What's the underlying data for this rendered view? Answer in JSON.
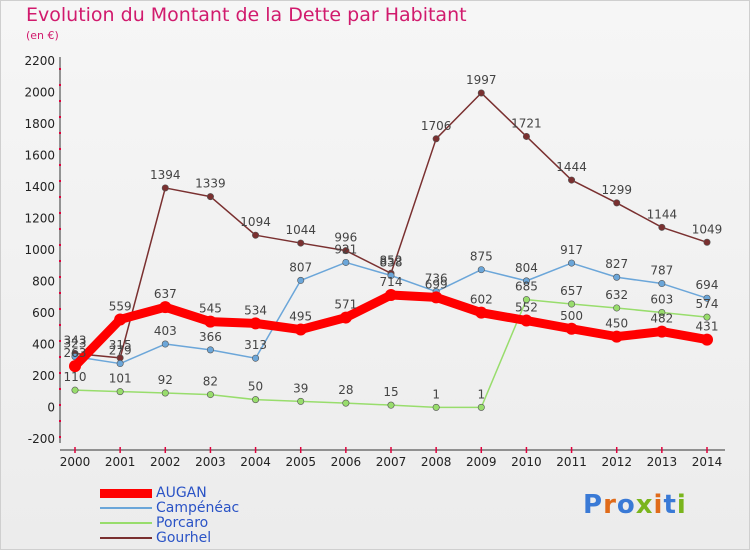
{
  "title": "Evolution du Montant de la Dette par Habitant",
  "subtitle": "(en €)",
  "logo": {
    "text": "Proxiti",
    "letter_colors": [
      "#3a7ad6",
      "#e06b1a",
      "#3a7ad6",
      "#7ab51d",
      "#e06b1a",
      "#3a7ad6",
      "#7ab51d"
    ]
  },
  "chart_data": {
    "type": "line",
    "title": "Evolution du Montant de la Dette par Habitant",
    "subtitle": "(en €)",
    "x": [
      "2000",
      "2001",
      "2002",
      "2003",
      "2004",
      "2005",
      "2006",
      "2007",
      "2008",
      "2009",
      "2010",
      "2011",
      "2012",
      "2013",
      "2014"
    ],
    "ylim": [
      -200,
      2200
    ],
    "yticks": [
      -200,
      0,
      200,
      400,
      600,
      800,
      1000,
      1200,
      1400,
      1600,
      1800,
      2000,
      2200
    ],
    "grid": false,
    "legend_position": "bottom-left",
    "series": [
      {
        "name": "AUGAN",
        "color": "#ff0000",
        "values": [
          263,
          559,
          637,
          545,
          534,
          495,
          571,
          714,
          699,
          602,
          552,
          500,
          450,
          482,
          431
        ],
        "labels": [
          "263",
          "559",
          "637",
          "545",
          "534",
          "495",
          "571",
          "714",
          "699",
          "602",
          "552",
          "500",
          "450",
          "482",
          "431"
        ]
      },
      {
        "name": "Campénéac",
        "color": "#6ba6d9",
        "values": [
          323,
          279,
          403,
          366,
          313,
          807,
          921,
          838,
          736,
          875,
          804,
          917,
          827,
          787,
          694
        ],
        "labels": [
          "323",
          "279",
          "403",
          "366",
          "313",
          "807",
          "921",
          "838",
          "736",
          "875",
          "804",
          "917",
          "827",
          "787",
          "694"
        ]
      },
      {
        "name": "Porcaro",
        "color": "#98dd6c",
        "values": [
          110,
          101,
          92,
          82,
          50,
          39,
          28,
          15,
          1,
          1,
          685,
          657,
          632,
          603,
          574
        ],
        "labels": [
          "110",
          "101",
          "92",
          "82",
          "50",
          "39",
          "28",
          "15",
          "1",
          "1",
          "685",
          "657",
          "632",
          "603",
          "574"
        ]
      },
      {
        "name": "Gourhel",
        "color": "#7a3030",
        "values": [
          343,
          315,
          1394,
          1339,
          1094,
          1044,
          996,
          852,
          1706,
          1997,
          1721,
          1444,
          1299,
          1144,
          1049
        ],
        "labels": [
          "343",
          "315",
          "1394",
          "1339",
          "1094",
          "1044",
          "996",
          "852",
          "1706",
          "1997",
          "1721",
          "1444",
          "1299",
          "1144",
          "1049"
        ]
      }
    ]
  }
}
